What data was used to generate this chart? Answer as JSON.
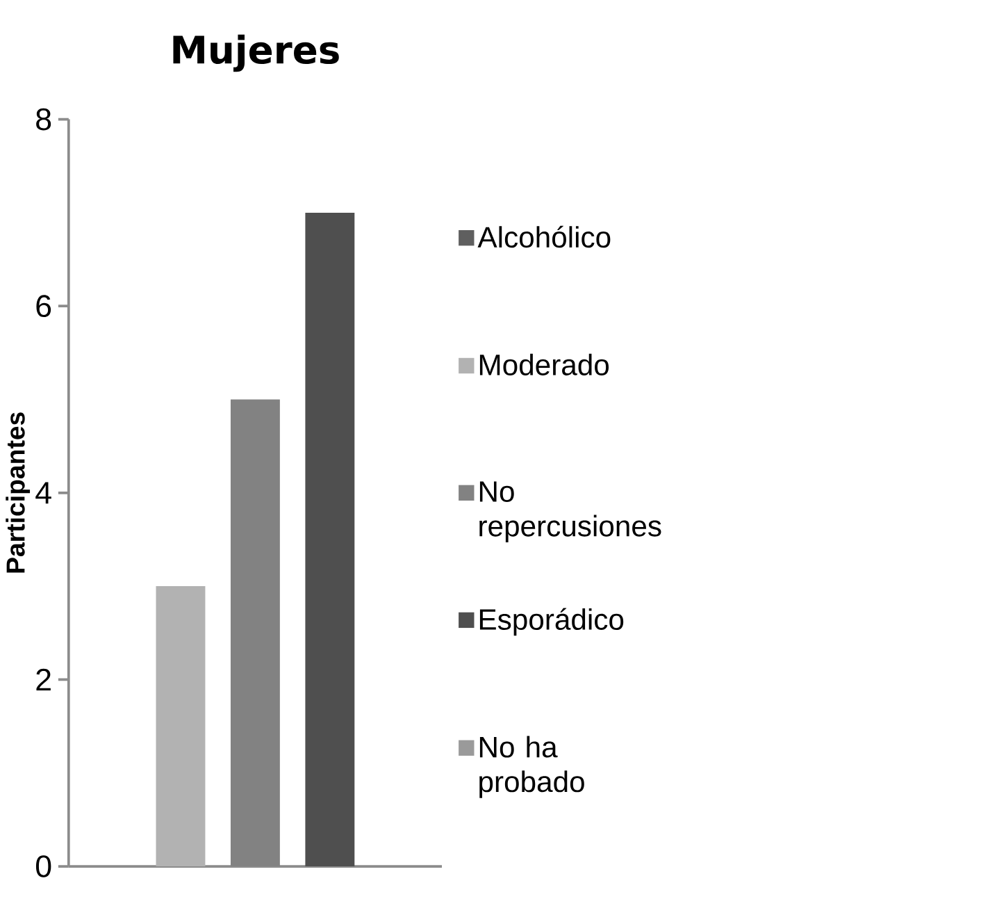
{
  "chart_data": {
    "type": "bar",
    "title": "Mujeres",
    "ylabel": "Participantes",
    "categories": [
      null
    ],
    "series": [
      {
        "name": "Alcohólico",
        "color": "#5f5f5f",
        "values": [
          0
        ]
      },
      {
        "name": "Moderado",
        "color": "#b2b2b2",
        "values": [
          3
        ]
      },
      {
        "name": "No repercusiones",
        "color": "#828282",
        "values": [
          5
        ]
      },
      {
        "name": "Esporádico",
        "color": "#4f4f4f",
        "values": [
          7
        ]
      },
      {
        "name": "No ha probado",
        "color": "#9a9a9a",
        "values": [
          0
        ]
      }
    ],
    "ylim": [
      0,
      8
    ],
    "yticks": [
      0,
      2,
      4,
      6,
      8
    ],
    "legend": "right"
  }
}
